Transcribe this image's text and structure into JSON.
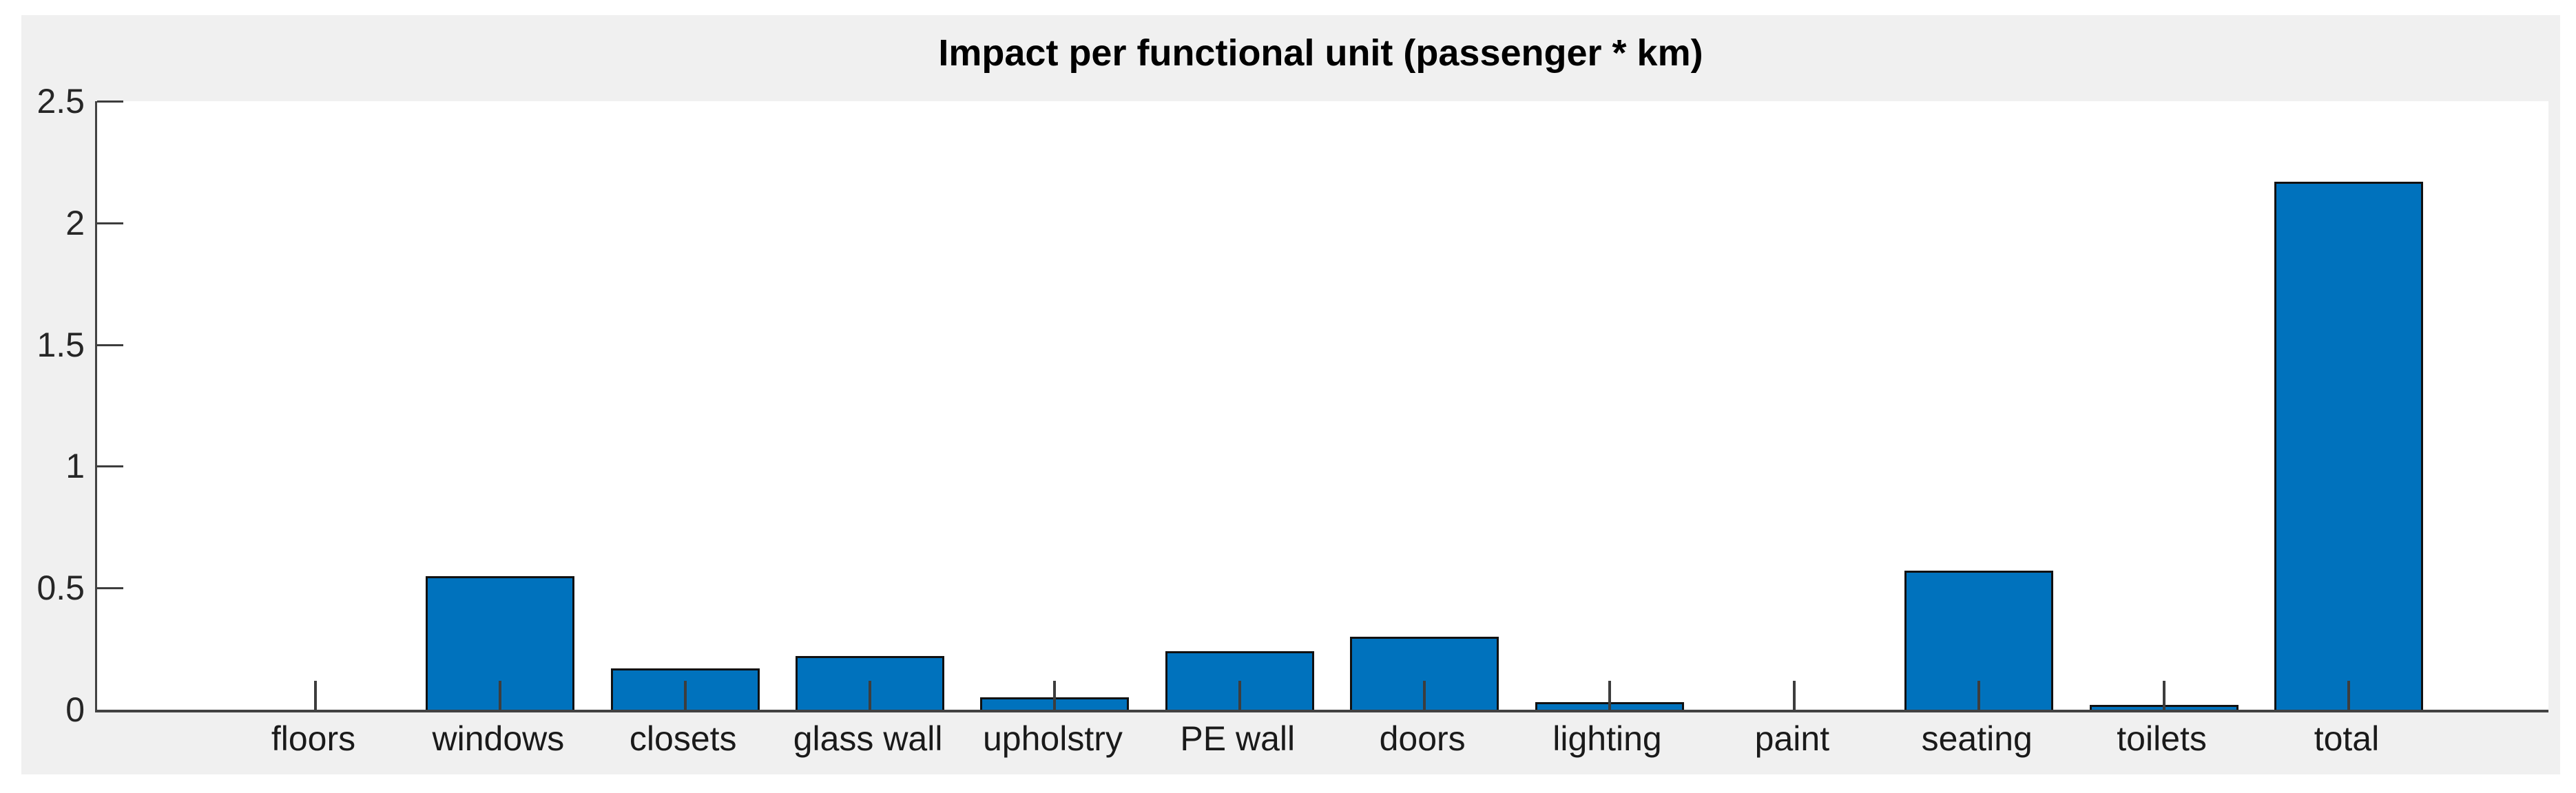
{
  "chart_data": {
    "type": "bar",
    "title": "Impact per functional unit (passenger * km)",
    "categories": [
      "floors",
      "windows",
      "closets",
      "glass wall",
      "upholstry",
      "PE wall",
      "doors",
      "lighting",
      "paint",
      "seating",
      "toilets",
      "total"
    ],
    "values": [
      0,
      0.55,
      0.17,
      0.22,
      0.05,
      0.24,
      0.3,
      0.03,
      0,
      0.57,
      0.02,
      2.17
    ],
    "xlabel": "",
    "ylabel": "",
    "ylim": [
      0,
      2.5
    ],
    "yticks": [
      0,
      0.5,
      1,
      1.5,
      2,
      2.5
    ],
    "grid": false,
    "legend": null,
    "bar_color": "#0072bd",
    "bar_edge_color": "#111111",
    "figure_bg": "#f0f0f0",
    "plot_bg": "#ffffff",
    "axis_color": "#424242",
    "tick_color": "#3d3d3d",
    "title_color": "#000000",
    "label_color": "#1a1a1a"
  }
}
